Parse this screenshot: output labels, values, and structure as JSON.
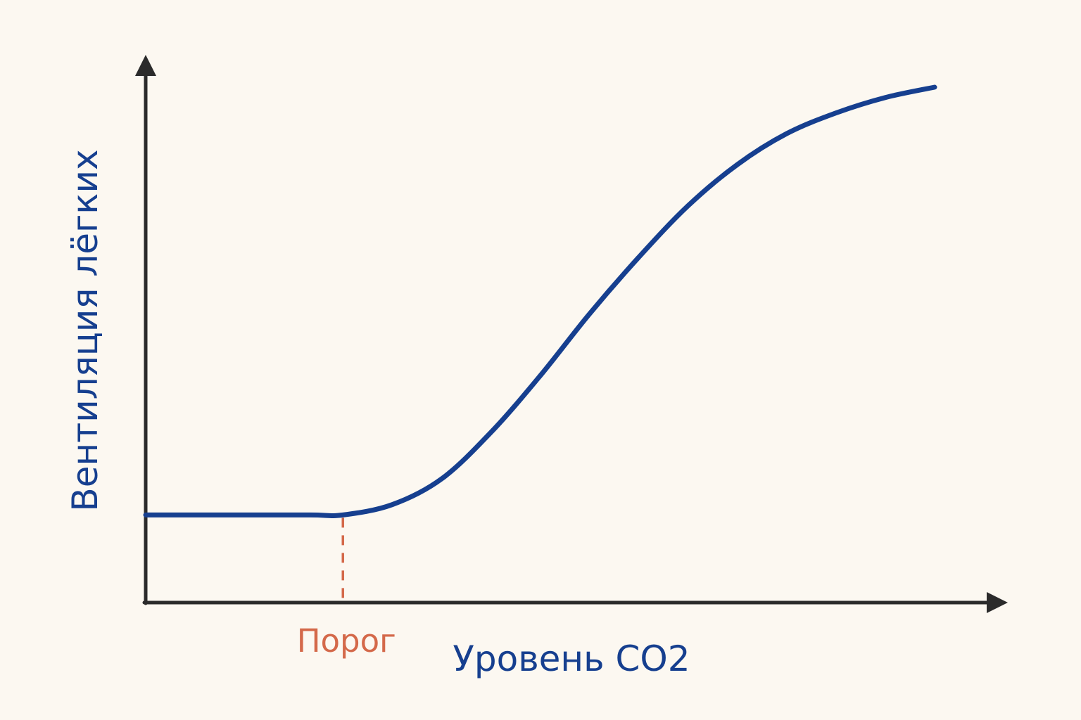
{
  "chart_data": {
    "type": "line",
    "title": "",
    "xlabel": "Уровень CO2",
    "ylabel": "Вентиляция лёгких",
    "grid": false,
    "threshold": {
      "label": "Порог",
      "x": 0.24
    },
    "x": [
      0.0,
      0.1,
      0.2,
      0.24,
      0.3,
      0.36,
      0.42,
      0.48,
      0.54,
      0.6,
      0.66,
      0.72,
      0.78,
      0.84,
      0.9,
      0.96
    ],
    "series": [
      {
        "values": [
          0.17,
          0.17,
          0.17,
          0.17,
          0.19,
          0.24,
          0.33,
          0.44,
          0.56,
          0.67,
          0.77,
          0.85,
          0.91,
          0.95,
          0.98,
          1.0
        ],
        "color": "#163f8f"
      }
    ],
    "colors": {
      "axis": "#2b2b2b",
      "curve": "#163f8f",
      "threshold": "#d4694a",
      "background": "#fcf8f1"
    }
  }
}
